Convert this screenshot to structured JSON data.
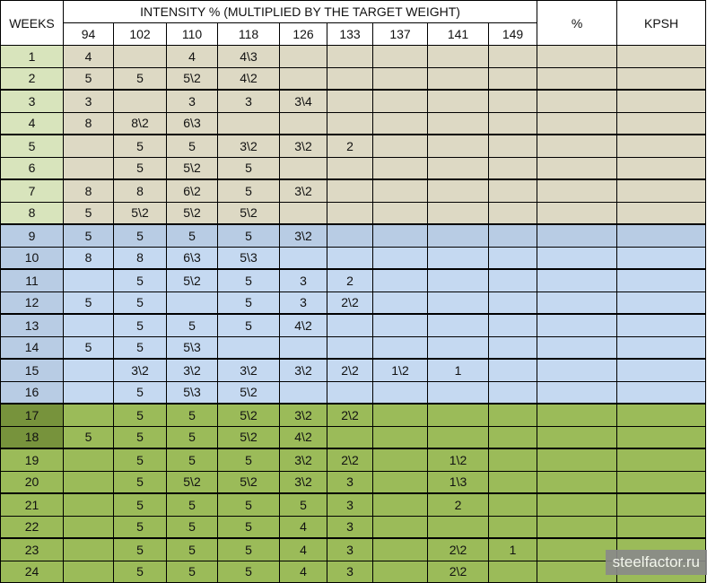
{
  "header": {
    "weeks_label": "WEEKS",
    "intensity_label": "INTENSITY % (MULTIPLIED BY THE TARGET WEIGHT)",
    "percent_label": "%",
    "kpsh_label": "KPSH",
    "intensity_columns": [
      "94",
      "102",
      "110",
      "118",
      "126",
      "133",
      "137",
      "141",
      "149"
    ]
  },
  "colors": {
    "phase1_cells": "#ddd9c4",
    "phase1_weeks": "#d8e4bc",
    "phase2_cells": "#c5d9f1",
    "phase2_weeks": "#b8cce4",
    "phase3_cells": "#9bbb59",
    "phase3_weeks_highlight": "#77933c"
  },
  "rows": [
    {
      "week": "1",
      "cells": [
        "4",
        "",
        "4",
        "4\\3",
        "",
        "",
        "",
        "",
        ""
      ],
      "phase": 1
    },
    {
      "week": "2",
      "cells": [
        "5",
        "5",
        "5\\2",
        "4\\2",
        "",
        "",
        "",
        "",
        ""
      ],
      "phase": 1
    },
    {
      "week": "3",
      "cells": [
        "3",
        "",
        "3",
        "3",
        "3\\4",
        "",
        "",
        "",
        ""
      ],
      "phase": 1
    },
    {
      "week": "4",
      "cells": [
        "8",
        "8\\2",
        "6\\3",
        "",
        "",
        "",
        "",
        "",
        ""
      ],
      "phase": 1
    },
    {
      "week": "5",
      "cells": [
        "",
        "5",
        "5",
        "3\\2",
        "3\\2",
        "2",
        "",
        "",
        ""
      ],
      "phase": 1
    },
    {
      "week": "6",
      "cells": [
        "",
        "5",
        "5\\2",
        "5",
        "",
        "",
        "",
        "",
        ""
      ],
      "phase": 1
    },
    {
      "week": "7",
      "cells": [
        "8",
        "8",
        "6\\2",
        "5",
        "3\\2",
        "",
        "",
        "",
        ""
      ],
      "phase": 1
    },
    {
      "week": "8",
      "cells": [
        "5",
        "5\\2",
        "5\\2",
        "5\\2",
        "",
        "",
        "",
        "",
        ""
      ],
      "phase": 1
    },
    {
      "week": "9",
      "cells": [
        "5",
        "5",
        "5",
        "5",
        "3\\2",
        "",
        "",
        "",
        ""
      ],
      "phase": 2
    },
    {
      "week": "10",
      "cells": [
        "8",
        "8",
        "6\\3",
        "5\\3",
        "",
        "",
        "",
        "",
        ""
      ],
      "phase": 2
    },
    {
      "week": "11",
      "cells": [
        "",
        "5",
        "5\\2",
        "5",
        "3",
        "2",
        "",
        "",
        ""
      ],
      "phase": 2
    },
    {
      "week": "12",
      "cells": [
        "5",
        "5",
        "",
        "5",
        "3",
        "2\\2",
        "",
        "",
        ""
      ],
      "phase": 2
    },
    {
      "week": "13",
      "cells": [
        "",
        "5",
        "5",
        "5",
        "4\\2",
        "",
        "",
        "",
        ""
      ],
      "phase": 2
    },
    {
      "week": "14",
      "cells": [
        "5",
        "5",
        "5\\3",
        "",
        "",
        "",
        "",
        "",
        ""
      ],
      "phase": 2
    },
    {
      "week": "15",
      "cells": [
        "",
        "3\\2",
        "3\\2",
        "3\\2",
        "3\\2",
        "2\\2",
        "1\\2",
        "1",
        ""
      ],
      "phase": 2
    },
    {
      "week": "16",
      "cells": [
        "",
        "5",
        "5\\3",
        "5\\2",
        "",
        "",
        "",
        "",
        ""
      ],
      "phase": 2
    },
    {
      "week": "17",
      "cells": [
        "",
        "5",
        "5",
        "5\\2",
        "3\\2",
        "2\\2",
        "",
        "",
        ""
      ],
      "phase": 3
    },
    {
      "week": "18",
      "cells": [
        "5",
        "5",
        "5",
        "5\\2",
        "4\\2",
        "",
        "",
        "",
        ""
      ],
      "phase": 3
    },
    {
      "week": "19",
      "cells": [
        "",
        "5",
        "5",
        "5",
        "3\\2",
        "2\\2",
        "",
        "1\\2",
        ""
      ],
      "phase": 3
    },
    {
      "week": "20",
      "cells": [
        "",
        "5",
        "5\\2",
        "5\\2",
        "3\\2",
        "3",
        "",
        "1\\3",
        ""
      ],
      "phase": 3
    },
    {
      "week": "21",
      "cells": [
        "",
        "5",
        "5",
        "5",
        "5",
        "3",
        "",
        "2",
        ""
      ],
      "phase": 3
    },
    {
      "week": "22",
      "cells": [
        "",
        "5",
        "5",
        "5",
        "4",
        "3",
        "",
        "",
        ""
      ],
      "phase": 3
    },
    {
      "week": "23",
      "cells": [
        "",
        "5",
        "5",
        "5",
        "4",
        "3",
        "",
        "2\\2",
        "1"
      ],
      "phase": 3
    },
    {
      "week": "24",
      "cells": [
        "",
        "5",
        "5",
        "5",
        "4",
        "3",
        "",
        "2\\2",
        ""
      ],
      "phase": 3
    }
  ],
  "watermark": "steelfactor.ru"
}
